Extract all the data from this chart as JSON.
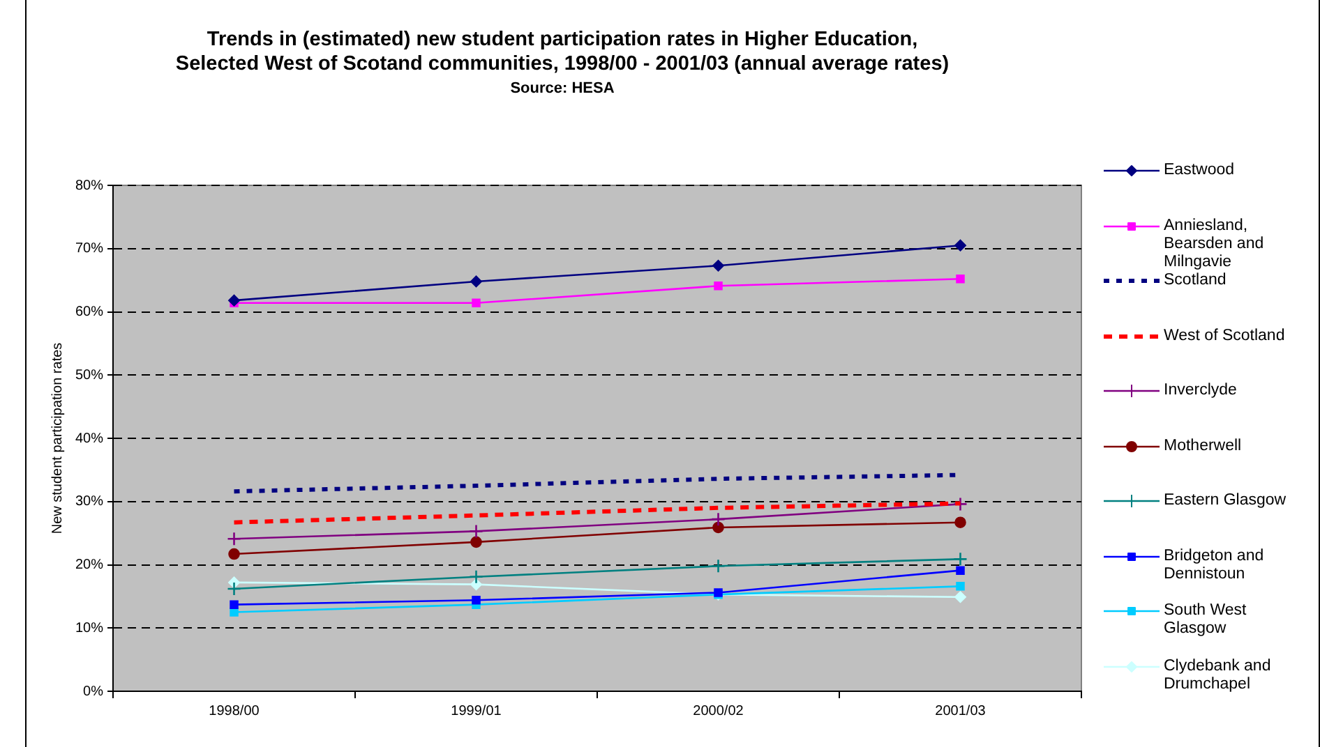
{
  "chart_data": {
    "type": "line",
    "title": "Trends in (estimated) new student participation rates in Higher Education,",
    "subtitle": "Selected West of Scotand communities, 1998/00 - 2001/03 (annual average rates)",
    "annotations": [
      "Source: HESA"
    ],
    "ylabel": "New student participation rates",
    "categories": [
      "1998/00",
      "1999/01",
      "2000/02",
      "2001/03"
    ],
    "series": [
      {
        "name": "Eastwood",
        "color": "#000080",
        "marker": "diamond",
        "line_style": "solid",
        "values": [
          61.8,
          64.8,
          67.3,
          70.5
        ]
      },
      {
        "name": "Anniesland, Bearsden and Milngavie",
        "color": "#ff00ff",
        "marker": "square",
        "line_style": "solid",
        "values": [
          61.4,
          61.4,
          64.1,
          65.2
        ]
      },
      {
        "name": "Scotland",
        "color": "#000080",
        "marker": "none",
        "line_style": "dotted",
        "values": [
          31.6,
          32.5,
          33.6,
          34.2
        ]
      },
      {
        "name": "West of Scotland",
        "color": "#ff0000",
        "marker": "none",
        "line_style": "dashed",
        "values": [
          26.7,
          27.8,
          29.0,
          29.7
        ]
      },
      {
        "name": "Inverclyde",
        "color": "#800080",
        "marker": "cross",
        "line_style": "solid",
        "values": [
          24.1,
          25.3,
          27.2,
          29.6
        ]
      },
      {
        "name": "Motherwell",
        "color": "#800000",
        "marker": "circle",
        "line_style": "solid",
        "values": [
          21.7,
          23.6,
          25.9,
          26.7
        ]
      },
      {
        "name": "Eastern Glasgow",
        "color": "#008080",
        "marker": "cross",
        "line_style": "solid",
        "values": [
          16.2,
          18.1,
          19.8,
          20.9
        ]
      },
      {
        "name": "Bridgeton and Dennistoun",
        "color": "#0000ff",
        "marker": "square",
        "line_style": "solid",
        "values": [
          13.7,
          14.4,
          15.6,
          19.1
        ]
      },
      {
        "name": "South West Glasgow",
        "color": "#00ccff",
        "marker": "square",
        "line_style": "solid",
        "values": [
          12.5,
          13.7,
          15.3,
          16.6
        ]
      },
      {
        "name": "Clydebank and Drumchapel",
        "color": "#ccffff",
        "marker": "diamond",
        "line_style": "solid",
        "values": [
          17.2,
          16.9,
          15.3,
          14.9
        ]
      }
    ],
    "ylim": [
      0,
      80
    ],
    "yticks": [
      {
        "value": 0,
        "label": "0%"
      },
      {
        "value": 10,
        "label": "10%"
      },
      {
        "value": 20,
        "label": "20%"
      },
      {
        "value": 30,
        "label": "30%"
      },
      {
        "value": 40,
        "label": "40%"
      },
      {
        "value": 50,
        "label": "50%"
      },
      {
        "value": 60,
        "label": "60%"
      },
      {
        "value": 70,
        "label": "70%"
      },
      {
        "value": 80,
        "label": "80%"
      }
    ],
    "grid": "y",
    "legend": "right"
  }
}
